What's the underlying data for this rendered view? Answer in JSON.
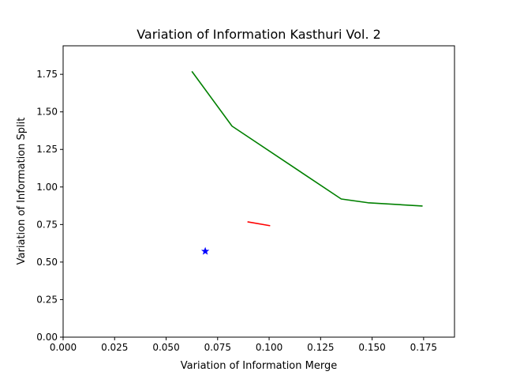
{
  "chart_data": {
    "type": "line",
    "title": "Variation of Information Kasthuri Vol. 2",
    "xlabel": "Variation of Information Merge",
    "ylabel": "Variation of Information Split",
    "xlim": [
      0.0,
      0.19
    ],
    "ylim": [
      0.0,
      1.94
    ],
    "xticks": [
      0.0,
      0.025,
      0.05,
      0.075,
      0.1,
      0.125,
      0.15,
      0.175
    ],
    "xtick_labels": [
      "0.000",
      "0.025",
      "0.050",
      "0.075",
      "0.100",
      "0.125",
      "0.150",
      "0.175"
    ],
    "yticks": [
      0.0,
      0.25,
      0.5,
      0.75,
      1.0,
      1.25,
      1.5,
      1.75
    ],
    "ytick_labels": [
      "0.00",
      "0.25",
      "0.50",
      "0.75",
      "1.00",
      "1.25",
      "1.50",
      "1.75"
    ],
    "grid": false,
    "legend": "none",
    "series": [
      {
        "kind": "line",
        "color": "#008000",
        "x": [
          0.0625,
          0.082,
          0.135,
          0.148,
          0.1745
        ],
        "y": [
          1.77,
          1.405,
          0.92,
          0.895,
          0.873
        ]
      },
      {
        "kind": "line",
        "color": "#ff0000",
        "x": [
          0.0895,
          0.1005
        ],
        "y": [
          0.768,
          0.742
        ]
      },
      {
        "kind": "marker",
        "marker": "star",
        "color": "#0000ff",
        "x": [
          0.069
        ],
        "y": [
          0.572
        ]
      }
    ]
  }
}
